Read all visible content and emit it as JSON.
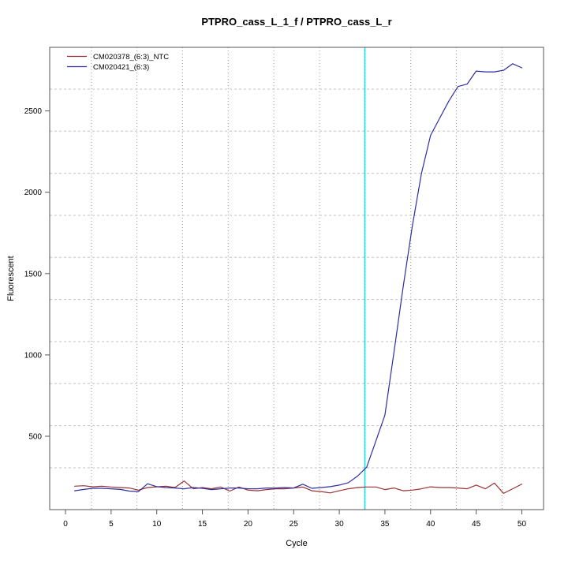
{
  "chart_data": {
    "type": "line",
    "title": "PTPRO_cass_L_1_f / PTPRO_cass_L_r",
    "xlabel": "Cycle",
    "ylabel": "Fluorescent",
    "xlim": [
      -1.73,
      52.38
    ],
    "ylim": [
      49,
      2891
    ],
    "xticks": [
      0,
      5,
      10,
      15,
      20,
      25,
      30,
      35,
      40,
      45,
      50
    ],
    "yticks": [
      500,
      1000,
      1500,
      2000,
      2500
    ],
    "grid": {
      "visible": true,
      "vertical_x": [
        2.83,
        7.83,
        12.83,
        17.83,
        22.83,
        27.83,
        32.83,
        37.83,
        42.83,
        47.83
      ],
      "horizontal_y": [
        306,
        565,
        824,
        1082,
        1341,
        1600,
        1858,
        2117,
        2376,
        2634
      ]
    },
    "threshold_line": {
      "x": 32.8,
      "color": "#00e5e5"
    },
    "legend_position": "top-left",
    "x": [
      1,
      2,
      3,
      4,
      5,
      6,
      7,
      8,
      9,
      10,
      11,
      12,
      13,
      14,
      15,
      16,
      17,
      18,
      19,
      20,
      21,
      22,
      23,
      24,
      25,
      26,
      27,
      28,
      29,
      30,
      31,
      32,
      33,
      34,
      35,
      36,
      37,
      38,
      39,
      40,
      41,
      42,
      43,
      44,
      45,
      46,
      47,
      48,
      49,
      50
    ],
    "series": [
      {
        "name": "CM020378_(6:3)_NTC",
        "color": "#993333",
        "values": [
          193,
          196,
          189,
          193,
          188,
          185,
          182,
          169,
          185,
          189,
          193,
          185,
          225,
          177,
          185,
          177,
          188,
          163,
          188,
          169,
          165,
          172,
          177,
          177,
          182,
          188,
          165,
          160,
          152,
          165,
          177,
          185,
          188,
          188,
          172,
          182,
          165,
          169,
          177,
          189,
          185,
          185,
          182,
          177,
          200,
          177,
          212,
          149,
          177,
          206
        ]
      },
      {
        "name": "CM020421_(6:3)",
        "color": "#2e2ea0",
        "values": [
          165,
          173,
          180,
          180,
          177,
          173,
          163,
          160,
          208,
          190,
          185,
          182,
          177,
          185,
          180,
          172,
          177,
          182,
          182,
          177,
          177,
          182,
          182,
          185,
          182,
          205,
          180,
          185,
          190,
          200,
          215,
          255,
          310,
          470,
          630,
          1020,
          1420,
          1790,
          2115,
          2350,
          2455,
          2560,
          2650,
          2665,
          2745,
          2740,
          2740,
          2750,
          2790,
          2765
        ]
      }
    ],
    "colors": {
      "axis": "#555555",
      "grid_vertical": "#999999",
      "grid_horizontal": "#c0c0c0",
      "text": "#000000",
      "background": "#ffffff"
    }
  }
}
